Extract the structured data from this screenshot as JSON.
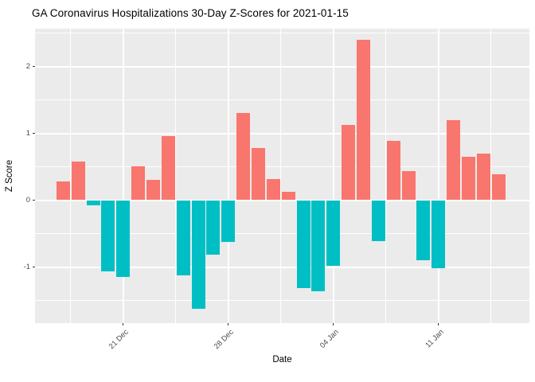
{
  "chart_data": {
    "type": "bar",
    "title": "GA Coronavirus Hospitalizations 30-Day Z-Scores for 2021-01-15",
    "xlabel": "Date",
    "ylabel": "Z Score",
    "ylim": [
      -1.83,
      2.6
    ],
    "grid": "on",
    "legend": "none",
    "panel_bg_color": "#ebebeb",
    "grid_color": "#ffffff",
    "positive_bar_color": "#F8766D",
    "negative_bar_color": "#00BFC4",
    "tick_text_color": "#4d4d4d",
    "bars": [
      {
        "date": "2020-12-17",
        "value": 0.28
      },
      {
        "date": "2020-12-18",
        "value": 0.58
      },
      {
        "date": "2020-12-19",
        "value": -0.08
      },
      {
        "date": "2020-12-20",
        "value": -1.06
      },
      {
        "date": "2020-12-21",
        "value": -1.15
      },
      {
        "date": "2020-12-22",
        "value": 0.51
      },
      {
        "date": "2020-12-23",
        "value": 0.3
      },
      {
        "date": "2020-12-24",
        "value": 0.96
      },
      {
        "date": "2020-12-25",
        "value": -1.13
      },
      {
        "date": "2020-12-26",
        "value": -1.63
      },
      {
        "date": "2020-12-27",
        "value": -0.81
      },
      {
        "date": "2020-12-28",
        "value": -0.63
      },
      {
        "date": "2020-12-29",
        "value": 1.3
      },
      {
        "date": "2020-12-30",
        "value": 0.78
      },
      {
        "date": "2020-12-31",
        "value": 0.31
      },
      {
        "date": "2021-01-01",
        "value": 0.12
      },
      {
        "date": "2021-01-02",
        "value": -1.32
      },
      {
        "date": "2021-01-03",
        "value": -1.36
      },
      {
        "date": "2021-01-04",
        "value": -0.98
      },
      {
        "date": "2021-01-05",
        "value": 1.12
      },
      {
        "date": "2021-01-06",
        "value": 2.4
      },
      {
        "date": "2021-01-07",
        "value": -0.61
      },
      {
        "date": "2021-01-08",
        "value": 0.89
      },
      {
        "date": "2021-01-09",
        "value": 0.43
      },
      {
        "date": "2021-01-10",
        "value": -0.9
      },
      {
        "date": "2021-01-11",
        "value": -1.02
      },
      {
        "date": "2021-01-12",
        "value": 1.2
      },
      {
        "date": "2021-01-13",
        "value": 0.65
      },
      {
        "date": "2021-01-14",
        "value": 0.7
      },
      {
        "date": "2021-01-15",
        "value": 0.39
      }
    ],
    "x_ticks": [
      {
        "index": 4,
        "label": "21 Dec"
      },
      {
        "index": 11,
        "label": "28 Dec"
      },
      {
        "index": 18,
        "label": "04 Jan"
      },
      {
        "index": 25,
        "label": "11 Jan"
      }
    ],
    "x_minor_grid_day_positions": [
      0.5,
      7.5,
      14.5,
      21.5,
      28.5
    ],
    "y_ticks": [
      {
        "value": 2,
        "label": "2"
      },
      {
        "value": 1,
        "label": "1"
      },
      {
        "value": 0,
        "label": "0"
      },
      {
        "value": -1,
        "label": "-1"
      }
    ],
    "y_major_grid_values": [
      -1,
      0,
      1,
      2
    ],
    "y_minor_grid_values": [
      -1.5,
      -0.5,
      0.5,
      1.5,
      2.5
    ]
  }
}
